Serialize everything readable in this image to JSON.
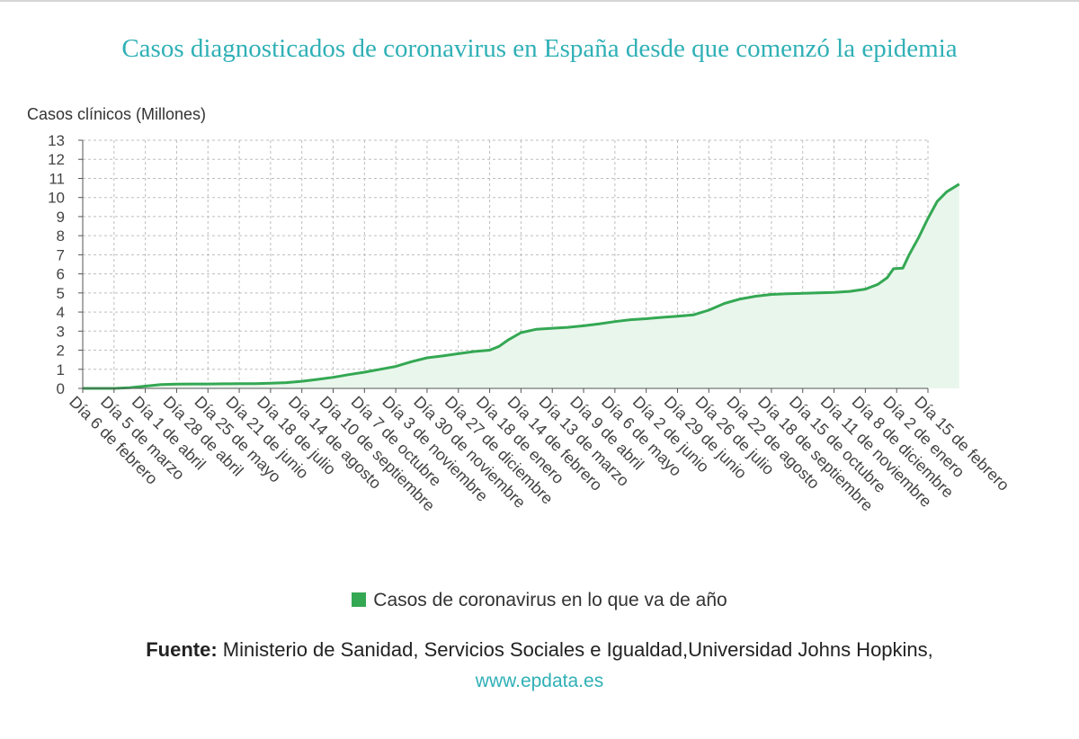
{
  "title": "Casos diagnosticados de coronavirus en España desde que comenzó la epidemia",
  "source_label": "Fuente:",
  "source_text": "Ministerio de Sanidad, Servicios Sociales e Igualdad,Universidad Johns Hopkins,",
  "source_link": "www.epdata.es",
  "colors": {
    "title": "#2fb0b6",
    "line": "#34a853",
    "area": "#e9f6ec",
    "grid": "#bdbdbd"
  },
  "chart_data": {
    "type": "area",
    "ylabel": "Casos clínicos (Millones)",
    "ylim": [
      0,
      13
    ],
    "yticks": [
      0,
      1,
      2,
      3,
      4,
      5,
      6,
      7,
      8,
      9,
      10,
      11,
      12,
      13
    ],
    "grid": true,
    "legend_position": "bottom",
    "categories": [
      "Día 6 de febrero",
      "Día 5 de marzo",
      "Día 1 de abril",
      "Día 28 de abril",
      "Día 25 de mayo",
      "Día 21 de junio",
      "Día 18 de julio",
      "Día 14 de agosto",
      "Día 10 de septiembre",
      "Día 7 de octubre",
      "Día 3 de noviembre",
      "Día 30 de noviembre",
      "Día 27 de diciembre",
      "Día 18 de enero",
      "Día 14 de febrero",
      "Día 13 de marzo",
      "Día 9 de abril",
      "Día 6 de mayo",
      "Día 2 de junio",
      "Día 29 de junio",
      "Día 26 de julio",
      "Día 22 de agosto",
      "Día 18 de septiembre",
      "Día 15 de octubre",
      "Día 11 de noviembre",
      "Día 8 de diciembre",
      "Día 2 de enero",
      "Día 15 de febrero"
    ],
    "series": [
      {
        "name": "Casos de coronavirus en lo que va de año",
        "points": [
          [
            0,
            0
          ],
          [
            0.5,
            0
          ],
          [
            1,
            0
          ],
          [
            1.5,
            0.04
          ],
          [
            2,
            0.12
          ],
          [
            2.5,
            0.2
          ],
          [
            3,
            0.22
          ],
          [
            3.5,
            0.23
          ],
          [
            4,
            0.23
          ],
          [
            4.5,
            0.24
          ],
          [
            5,
            0.25
          ],
          [
            5.5,
            0.25
          ],
          [
            6,
            0.27
          ],
          [
            6.5,
            0.3
          ],
          [
            7,
            0.37
          ],
          [
            7.5,
            0.47
          ],
          [
            8,
            0.58
          ],
          [
            8.5,
            0.72
          ],
          [
            9,
            0.85
          ],
          [
            9.5,
            1.0
          ],
          [
            10,
            1.15
          ],
          [
            10.5,
            1.4
          ],
          [
            11,
            1.6
          ],
          [
            11.5,
            1.7
          ],
          [
            12,
            1.82
          ],
          [
            12.5,
            1.93
          ],
          [
            13,
            2.0
          ],
          [
            13.3,
            2.2
          ],
          [
            13.6,
            2.55
          ],
          [
            14,
            2.92
          ],
          [
            14.5,
            3.1
          ],
          [
            15,
            3.15
          ],
          [
            15.5,
            3.2
          ],
          [
            16,
            3.28
          ],
          [
            16.5,
            3.38
          ],
          [
            17,
            3.5
          ],
          [
            17.5,
            3.6
          ],
          [
            18,
            3.65
          ],
          [
            18.5,
            3.72
          ],
          [
            19,
            3.78
          ],
          [
            19.5,
            3.85
          ],
          [
            20,
            4.1
          ],
          [
            20.5,
            4.45
          ],
          [
            21,
            4.68
          ],
          [
            21.5,
            4.83
          ],
          [
            22,
            4.92
          ],
          [
            22.5,
            4.96
          ],
          [
            23,
            4.98
          ],
          [
            23.5,
            5.0
          ],
          [
            24,
            5.03
          ],
          [
            24.5,
            5.08
          ],
          [
            25,
            5.2
          ],
          [
            25.4,
            5.45
          ],
          [
            25.7,
            5.8
          ],
          [
            25.9,
            6.27
          ],
          [
            26.2,
            6.3
          ],
          [
            26.4,
            7.0
          ],
          [
            26.7,
            7.9
          ],
          [
            27,
            8.9
          ],
          [
            27.3,
            9.8
          ],
          [
            27.6,
            10.3
          ],
          [
            28,
            10.7
          ]
        ]
      }
    ]
  }
}
